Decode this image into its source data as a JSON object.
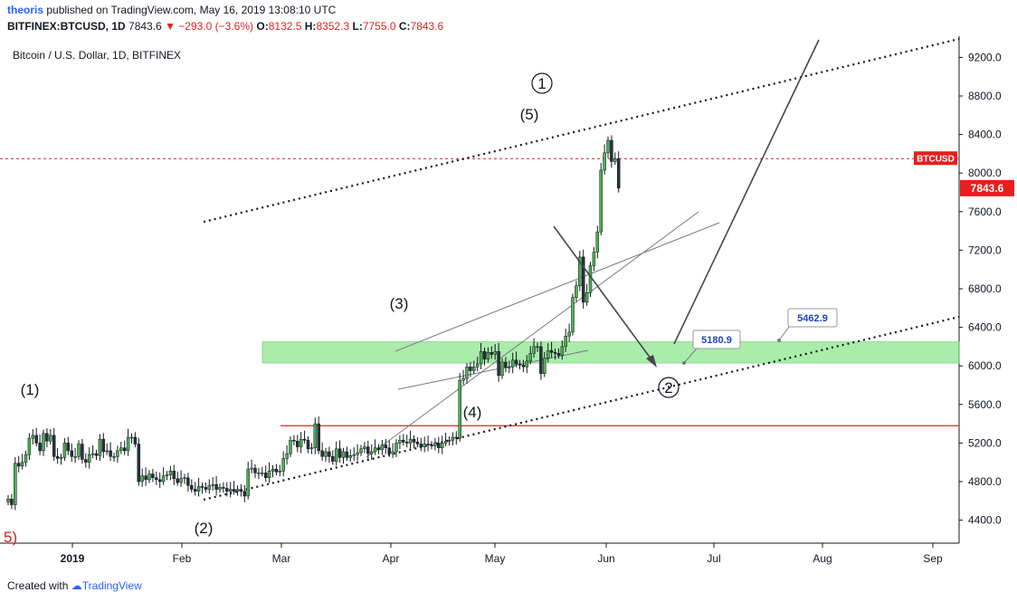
{
  "header": {
    "author": "theoris",
    "published": "published on TradingView.com, May 16, 2019 13:08:10 UTC",
    "symbol": "BITFINEX:BTCUSD, 1D",
    "last": "7843.6",
    "change": "−293.0 (−3.6%)",
    "o_label": "O:",
    "o_val": "8132.5",
    "h_label": "H:",
    "h_val": "8352.3",
    "l_label": "L:",
    "l_val": "7755.0",
    "c_label": "C:",
    "c_val": "7843.6"
  },
  "footer": {
    "created_with": "Created with",
    "brand": "TradingView"
  },
  "colors": {
    "up": "#26a69a",
    "down": "#ef5350",
    "candle_body_up": "#4caf50",
    "candle_body_down": "#263238",
    "zone": "#8ee68e",
    "red_line": "#e91e1e"
  },
  "chart_data": {
    "type": "candlestick",
    "title": "Bitcoin / U.S. Dollar, 1D, BITFINEX",
    "ylim": [
      4200,
      9500
    ],
    "y_ticks": [
      "9200.0",
      "8800.0",
      "8400.0",
      "8000.0",
      "7600.0",
      "7200.0",
      "6800.0",
      "6400.0",
      "6000.0",
      "5600.0",
      "5200.0",
      "4800.0",
      "4400.0"
    ],
    "x_ticks": [
      "2019",
      "Feb",
      "Mar",
      "Apr",
      "May",
      "Jun",
      "Jul",
      "Aug",
      "Sep"
    ],
    "symbol_label": "BTCUSD",
    "last_price_label": "7843.6",
    "horizontal_levels": [
      8150,
      5380
    ],
    "support_zone": [
      6030,
      6250
    ],
    "price_labels": [
      "5180.9",
      "5462.9"
    ],
    "wave_labels": [
      "(1)",
      "(2)",
      "(3)",
      "(4)",
      "(5)",
      "1",
      "2",
      "5)"
    ],
    "candles_close": [
      4620,
      4560,
      4990,
      4960,
      5000,
      5080,
      5250,
      5280,
      5200,
      5120,
      5300,
      5220,
      5280,
      5060,
      5040,
      5050,
      5200,
      5120,
      5060,
      5060,
      5190,
      5030,
      5000,
      5080,
      5090,
      5070,
      5240,
      5110,
      5120,
      5060,
      5060,
      5120,
      5150,
      5120,
      5260,
      5260,
      5190,
      4800,
      4860,
      4820,
      4880,
      4840,
      4820,
      4800,
      4860,
      4870,
      4910,
      4830,
      4790,
      4830,
      4840,
      4760,
      4720,
      4700,
      4750,
      4740,
      4720,
      4760,
      4770,
      4720,
      4740,
      4730,
      4700,
      4720,
      4700,
      4720,
      4700,
      4650,
      4930,
      4940,
      4890,
      4890,
      4890,
      4840,
      4910,
      4930,
      4900,
      4910,
      5040,
      5090,
      5230,
      5220,
      5160,
      5240,
      5230,
      5140,
      5150,
      5400,
      5120,
      5060,
      5110,
      5060,
      5010,
      5140,
      5050,
      5110,
      5050,
      5070,
      5080,
      5100,
      5140,
      5160,
      5090,
      5110,
      5150,
      5130,
      5180,
      5150,
      5090,
      5110,
      5200,
      5230,
      5210,
      5200,
      5240,
      5210,
      5190,
      5160,
      5190,
      5180,
      5170,
      5200,
      5150,
      5200,
      5220,
      5230,
      5260,
      5250,
      5850,
      5870,
      5990,
      5950,
      5990,
      6020,
      6150,
      6070,
      6140,
      6120,
      6150,
      5900,
      6040,
      5980,
      5990,
      6060,
      6020,
      6010,
      5990,
      6050,
      6130,
      6200,
      6200,
      5920,
      6080,
      6160,
      6140,
      6130,
      6110,
      6200,
      6310,
      6350,
      6710,
      6830,
      7130,
      6660,
      6760,
      7040,
      7180,
      7390,
      8030,
      8210,
      8340,
      8120,
      8150,
      7843.6
    ]
  }
}
